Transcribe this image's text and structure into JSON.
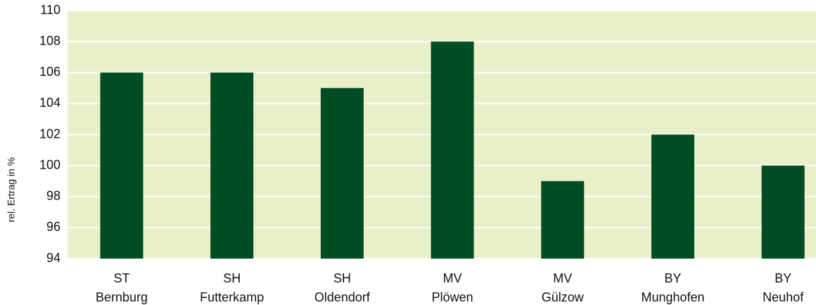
{
  "chart_data": {
    "type": "bar",
    "y_label": "rel. Ertrag in %",
    "categories": [
      [
        "ST",
        "Bernburg"
      ],
      [
        "SH",
        "Futterkamp"
      ],
      [
        "SH",
        "Oldendorf"
      ],
      [
        "MV",
        "Plöwen"
      ],
      [
        "MV",
        "Gülzow"
      ],
      [
        "BY",
        "Munghofen"
      ],
      [
        "BY",
        "Neuhof"
      ]
    ],
    "values": [
      106,
      106,
      105,
      108,
      99,
      102,
      100
    ],
    "color": "#004d23",
    "plot_background": "#e9efc8",
    "ylim": [
      94,
      110
    ],
    "yticks": [
      94,
      96,
      98,
      100,
      102,
      104,
      106,
      108,
      110
    ],
    "grid": true
  }
}
